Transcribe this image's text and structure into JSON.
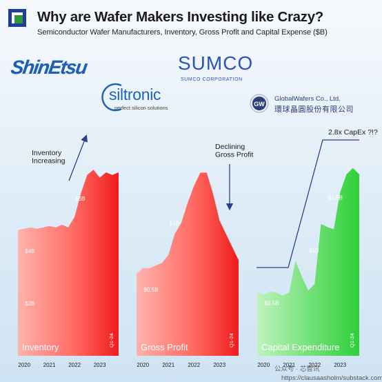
{
  "header": {
    "title": "Why are Wafer Makers Investing like Crazy?",
    "subtitle": "Semiconductor Wafer Manufacturers, Inventory, Gross Profit and Capital Expense ($B)"
  },
  "logos": {
    "shinetsu": "ShinEtsu",
    "sumco_main": "SUMCO",
    "sumco_sub": "SUMCO CORPORATION",
    "siltronic_main": "siltronic",
    "siltronic_sub": "perfect silicon solutions",
    "globalwafers_badge": "GW",
    "globalwafers_main": "GlobalWafers Co., Ltd.",
    "globalwafers_cn": "環球晶圓股份有限公司"
  },
  "colors": {
    "inventory": "#f03a3a",
    "gross_profit": "#f03a3a",
    "capex": "#3fd146",
    "arrow": "#2b3f8c"
  },
  "chart_data": [
    {
      "type": "area",
      "title": "Inventory",
      "x": [
        "2020-Q1",
        "2020-Q2",
        "2020-Q3",
        "2020-Q4",
        "2021-Q1",
        "2021-Q2",
        "2021-Q3",
        "2021-Q4",
        "2022-Q1",
        "2022-Q2",
        "2022-Q3",
        "2022-Q4",
        "2023-Q1",
        "2023-Q2",
        "2023-Q3",
        "2023-Q4",
        "2024-Q1"
      ],
      "values": [
        4.8,
        4.85,
        4.9,
        4.85,
        4.9,
        4.95,
        4.9,
        5.0,
        4.9,
        5.3,
        6.2,
        6.9,
        7.1,
        6.8,
        7.0,
        6.9,
        7.0
      ],
      "ylim": [
        0,
        8
      ],
      "tick_labels": [
        "2020",
        "2021",
        "2022",
        "2023"
      ],
      "last_label": "Q1-24",
      "data_labels": [
        {
          "x": "2020-Q3",
          "y": 4.0,
          "text": "$4B"
        },
        {
          "x": "2020-Q3",
          "y": 2.0,
          "text": "$2B"
        },
        {
          "x": "2022-Q3",
          "y": 6.0,
          "text": "$6B"
        }
      ],
      "annotation": "Inventory\nIncreasing"
    },
    {
      "type": "area",
      "title": "Gross Profit",
      "x": [
        "2020-Q1",
        "2020-Q2",
        "2020-Q3",
        "2020-Q4",
        "2021-Q1",
        "2021-Q2",
        "2021-Q3",
        "2021-Q4",
        "2022-Q1",
        "2022-Q2",
        "2022-Q3",
        "2022-Q4",
        "2023-Q1",
        "2023-Q2",
        "2023-Q3",
        "2023-Q4",
        "2024-Q1"
      ],
      "values": [
        0.62,
        0.66,
        0.66,
        0.68,
        0.7,
        0.76,
        0.92,
        1.0,
        1.15,
        1.28,
        1.38,
        1.38,
        1.22,
        1.02,
        0.92,
        0.82,
        0.72
      ],
      "ylim": [
        0,
        1.6
      ],
      "tick_labels": [
        "2020",
        "2021",
        "2022",
        "2023"
      ],
      "last_label": "Q1-24",
      "data_labels": [
        {
          "x": "2020-Q3",
          "y": 0.5,
          "text": "$0.5B"
        },
        {
          "x": "2021-Q3",
          "y": 1.0,
          "text": "$1B"
        }
      ],
      "annotation": "Declining\nGross Profit"
    },
    {
      "type": "area",
      "title": "Capital Expenditure",
      "x": [
        "2020-Q1",
        "2020-Q2",
        "2020-Q3",
        "2020-Q4",
        "2021-Q1",
        "2021-Q2",
        "2021-Q3",
        "2021-Q4",
        "2022-Q1",
        "2022-Q2",
        "2022-Q3",
        "2022-Q4",
        "2023-Q1",
        "2023-Q2",
        "2023-Q3",
        "2023-Q4",
        "2024-Q1"
      ],
      "values": [
        0.6,
        0.58,
        0.61,
        0.6,
        0.57,
        0.6,
        0.9,
        0.75,
        0.62,
        0.68,
        1.25,
        1.22,
        1.2,
        1.55,
        1.72,
        1.78,
        1.72
      ],
      "ylim": [
        0,
        2
      ],
      "tick_labels": [
        "2020",
        "2021",
        "2022",
        "2023"
      ],
      "last_label": "Q1-24",
      "data_labels": [
        {
          "x": "2020-Q3",
          "y": 0.5,
          "text": "$0.5B"
        },
        {
          "x": "2022-Q2",
          "y": 1.0,
          "text": "$1B"
        },
        {
          "x": "2023-Q1",
          "y": 1.5,
          "text": "$1.5B"
        }
      ],
      "annotation": "2.8x CapEx ?!?"
    }
  ],
  "watermark": {
    "wechat": "公众号 · 芯智讯",
    "url": "https://clausaasholm/substack.com"
  }
}
